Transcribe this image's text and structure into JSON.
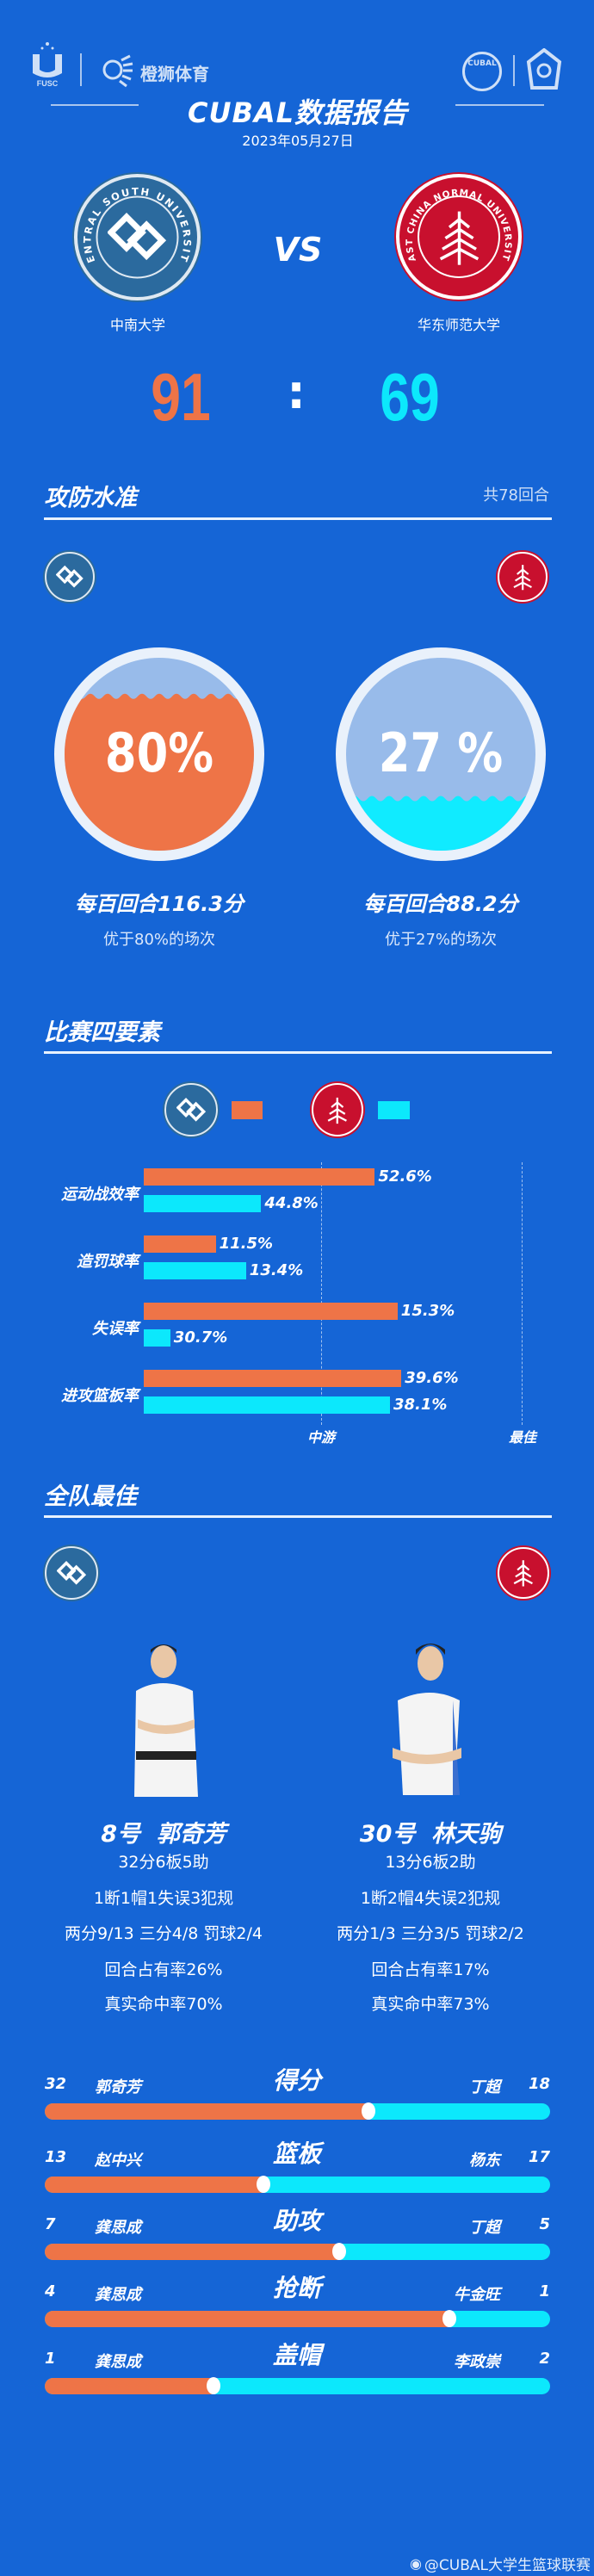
{
  "header": {
    "left_logos": [
      "FUSC",
      "橙狮体育"
    ],
    "right_logos": [
      "CUBAL",
      "CUBA"
    ],
    "title": "CUBAL数据报告",
    "date": "2023年05月27日"
  },
  "colors": {
    "background": "#1565d6",
    "home": "#ee7447",
    "away": "#0ce8fc"
  },
  "match": {
    "home_team": "中南大学",
    "away_team": "华东师范大学",
    "home_logo_text": "CENTRAL SOUTH UNIVERSITY",
    "away_logo_text": "EAST CHINA NORMAL UNIVERSITY",
    "vs": "VS",
    "home_score": "91",
    "separator": ":",
    "away_score": "69"
  },
  "efficiency": {
    "title": "攻防水准",
    "possessions": "共78回合",
    "home": {
      "percent_label": "80%",
      "percent": 80,
      "per100": "每百回合116.3分",
      "better_than": "优于80%的场次"
    },
    "away": {
      "percent_label": "27 %",
      "percent": 27,
      "per100": "每百回合88.2分",
      "better_than": "优于27%的场次"
    }
  },
  "four_factors": {
    "title": "比赛四要素",
    "axis_labels": {
      "mid": "中游",
      "best": "最佳"
    },
    "rows": [
      {
        "label": "运动战效率",
        "home": "52.6%",
        "away": "44.8%",
        "home_level": 0.61,
        "away_level": 0.31
      },
      {
        "label": "造罚球率",
        "home": "11.5%",
        "away": "13.4%",
        "home_level": 0.19,
        "away_level": 0.27
      },
      {
        "label": "失误率",
        "home": "15.3%",
        "away": "30.7%",
        "home_level": 0.67,
        "away_level": 0.07
      },
      {
        "label": "进攻篮板率",
        "home": "39.6%",
        "away": "38.1%",
        "home_level": 0.68,
        "away_level": 0.65
      }
    ]
  },
  "team_best": {
    "title": "全队最佳",
    "home_player": {
      "name": "8号  郭奇芳",
      "line1": "32分6板5助",
      "line2": "1断1帽1失误3犯规",
      "line3": "两分9/13 三分4/8 罚球2/4",
      "line4": "回合占有率26%",
      "line5": "真实命中率70%"
    },
    "away_player": {
      "name": "30号  林天驹",
      "line1": "13分6板2助",
      "line2": "1断2帽4失误2犯规",
      "line3": "两分1/3 三分3/5 罚球2/2",
      "line4": "回合占有率17%",
      "line5": "真实命中率73%"
    }
  },
  "leaders": [
    {
      "category": "得分",
      "home_value": "32",
      "home_name": "郭奇芳",
      "away_name": "丁超",
      "away_value": "18",
      "home_n": 32,
      "away_n": 18
    },
    {
      "category": "篮板",
      "home_value": "13",
      "home_name": "赵中兴",
      "away_name": "杨东",
      "away_value": "17",
      "home_n": 13,
      "away_n": 17
    },
    {
      "category": "助攻",
      "home_value": "7",
      "home_name": "龚思成",
      "away_name": "丁超",
      "away_value": "5",
      "home_n": 7,
      "away_n": 5
    },
    {
      "category": "抢断",
      "home_value": "4",
      "home_name": "龚思成",
      "away_name": "牛金旺",
      "away_value": "1",
      "home_n": 4,
      "away_n": 1
    },
    {
      "category": "盖帽",
      "home_value": "1",
      "home_name": "龚思成",
      "away_name": "李政崇",
      "away_value": "2",
      "home_n": 1,
      "away_n": 2
    }
  ],
  "watermark": "@CUBAL大学生篮球联赛"
}
